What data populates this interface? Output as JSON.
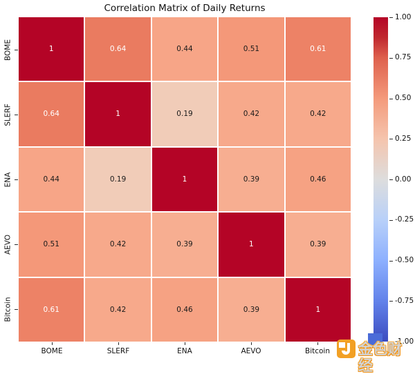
{
  "title": "Correlation Matrix of Daily Returns",
  "chart_data": {
    "type": "heatmap",
    "title": "Correlation Matrix of Daily Returns",
    "colormap": "coolwarm",
    "vmin": -1,
    "vmax": 1,
    "categories": [
      "BOME",
      "SLERF",
      "ENA",
      "AEVO",
      "Bitcoin"
    ],
    "matrix": [
      [
        1,
        0.64,
        0.44,
        0.51,
        0.61
      ],
      [
        0.64,
        1,
        0.19,
        0.42,
        0.42
      ],
      [
        0.44,
        0.19,
        1,
        0.39,
        0.46
      ],
      [
        0.51,
        0.42,
        0.39,
        1,
        0.39
      ],
      [
        0.61,
        0.42,
        0.46,
        0.39,
        1
      ]
    ],
    "cell_labels": [
      [
        "1",
        "0.64",
        "0.44",
        "0.51",
        "0.61"
      ],
      [
        "0.64",
        "1",
        "0.19",
        "0.42",
        "0.42"
      ],
      [
        "0.44",
        "0.19",
        "1",
        "0.39",
        "0.46"
      ],
      [
        "0.51",
        "0.42",
        "0.39",
        "1",
        "0.39"
      ],
      [
        "0.61",
        "0.42",
        "0.46",
        "0.39",
        "1"
      ]
    ],
    "cell_colors": [
      [
        "#b40426",
        "#ea7b60",
        "#f7a587",
        "#f49879",
        "#ed8266"
      ],
      [
        "#ea7b60",
        "#b40426",
        "#f1ccb8",
        "#f7a98b",
        "#f7a98b"
      ],
      [
        "#f7a587",
        "#f1ccb8",
        "#b40426",
        "#f7ae91",
        "#f6a283"
      ],
      [
        "#f49879",
        "#f7a98b",
        "#f7ae91",
        "#b40426",
        "#f7ae91"
      ],
      [
        "#ed8266",
        "#f7a98b",
        "#f6a283",
        "#f7ae91",
        "#b40426"
      ]
    ],
    "cell_text_colors": [
      [
        "#ffffff",
        "#ffffff",
        "#1a1a1a",
        "#1a1a1a",
        "#ffffff"
      ],
      [
        "#ffffff",
        "#ffffff",
        "#1a1a1a",
        "#1a1a1a",
        "#1a1a1a"
      ],
      [
        "#1a1a1a",
        "#1a1a1a",
        "#ffffff",
        "#1a1a1a",
        "#1a1a1a"
      ],
      [
        "#1a1a1a",
        "#1a1a1a",
        "#1a1a1a",
        "#ffffff",
        "#1a1a1a"
      ],
      [
        "#ffffff",
        "#1a1a1a",
        "#1a1a1a",
        "#1a1a1a",
        "#ffffff"
      ]
    ],
    "colorbar": {
      "tick_labels": [
        "1.00",
        "0.75",
        "0.50",
        "0.25",
        "0.00",
        "-0.25",
        "-0.50",
        "-0.75",
        "-1.00"
      ],
      "gradient": [
        {
          "pos": 0,
          "color": "#b40426"
        },
        {
          "pos": 6.25,
          "color": "#c0282f"
        },
        {
          "pos": 12.5,
          "color": "#de604d"
        },
        {
          "pos": 25,
          "color": "#f49a7b"
        },
        {
          "pos": 37.5,
          "color": "#f5c4ad"
        },
        {
          "pos": 50,
          "color": "#dddddd"
        },
        {
          "pos": 62.5,
          "color": "#b8d0f9"
        },
        {
          "pos": 75,
          "color": "#8db0fe"
        },
        {
          "pos": 87.5,
          "color": "#6282ea"
        },
        {
          "pos": 100,
          "color": "#3b4cc0"
        }
      ]
    }
  },
  "watermark": {
    "text": "金色财经",
    "logo_orange": "#f2a024",
    "blue_square": "#4a6bd8"
  }
}
